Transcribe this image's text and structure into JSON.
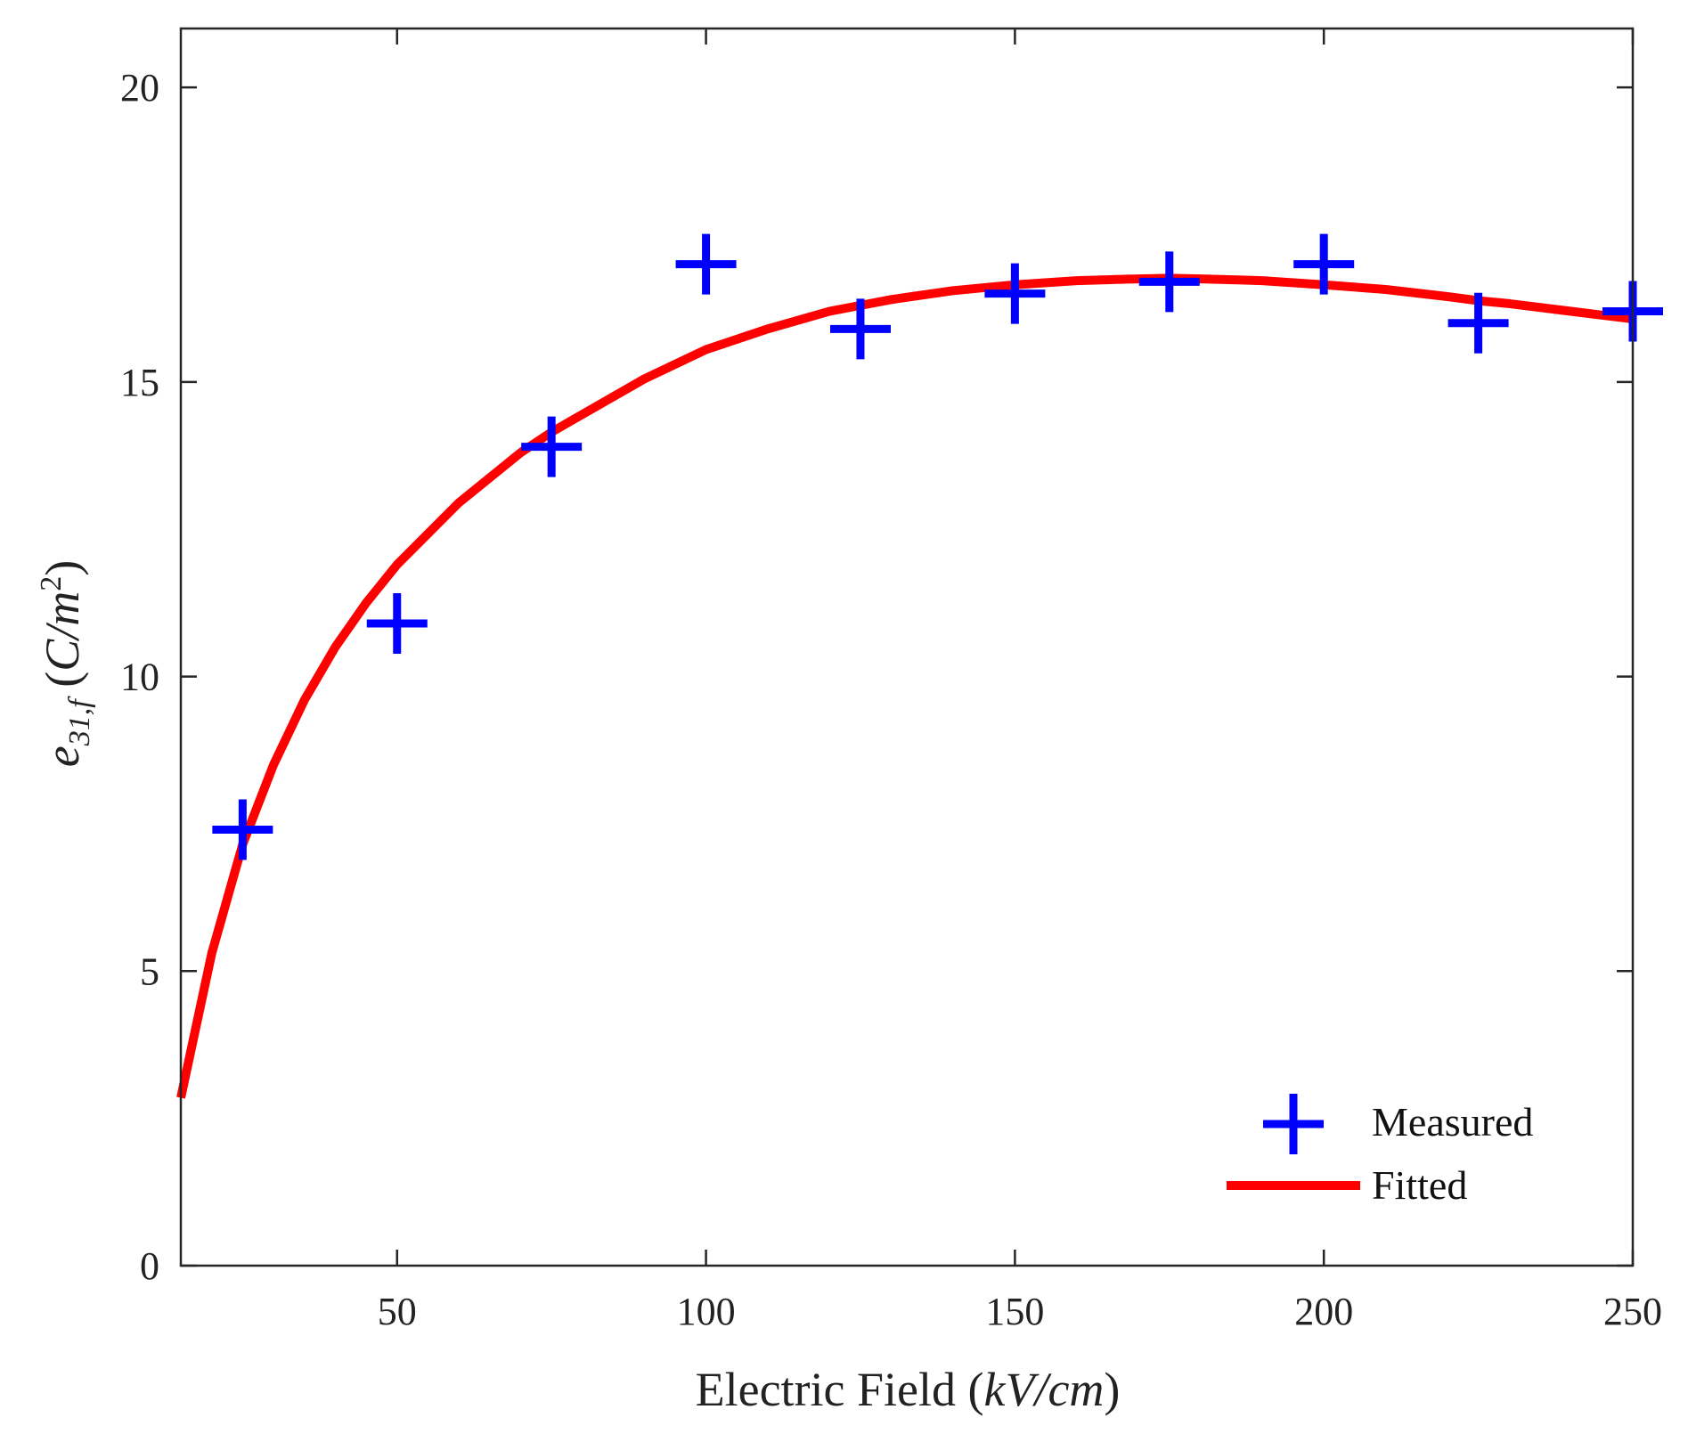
{
  "chart_data": {
    "type": "scatter+line",
    "title": "",
    "xlabel": {
      "text": "Electric Field ",
      "unit_open": "(",
      "unit_italic": "kV/cm",
      "unit_close": ")"
    },
    "ylabel": {
      "symbol": "e",
      "subscript": "31,f",
      "unit_open": "(",
      "unit_italic": "C/m",
      "unit_sup": "2",
      "unit_close": ")"
    },
    "xlim": [
      15,
      250
    ],
    "ylim": [
      0,
      21
    ],
    "xticks": [
      50,
      100,
      150,
      200,
      250
    ],
    "yticks": [
      0,
      5,
      10,
      15,
      20
    ],
    "grid": false,
    "legend_position": "bottom-right",
    "series": [
      {
        "name": "Measured",
        "kind": "markers",
        "marker": "plus",
        "color": "#0000ff",
        "x": [
          25,
          50,
          75,
          100,
          125,
          150,
          175,
          200,
          225,
          250
        ],
        "y": [
          7.4,
          10.9,
          13.9,
          17.0,
          15.9,
          16.5,
          16.7,
          17.0,
          16.0,
          16.2
        ]
      },
      {
        "name": "Fitted",
        "kind": "line",
        "color": "#ff0000",
        "x": [
          15,
          20,
          25,
          30,
          35,
          40,
          45,
          50,
          60,
          70,
          75,
          80,
          90,
          100,
          110,
          120,
          125,
          130,
          140,
          150,
          160,
          170,
          175,
          180,
          190,
          200,
          210,
          220,
          225,
          230,
          240,
          250
        ],
        "y": [
          2.85,
          5.3,
          7.15,
          8.5,
          9.6,
          10.5,
          11.25,
          11.9,
          12.95,
          13.8,
          14.15,
          14.45,
          15.05,
          15.55,
          15.9,
          16.2,
          16.3,
          16.4,
          16.55,
          16.65,
          16.72,
          16.75,
          16.76,
          16.75,
          16.72,
          16.65,
          16.57,
          16.45,
          16.38,
          16.33,
          16.2,
          16.07
        ]
      }
    ]
  }
}
